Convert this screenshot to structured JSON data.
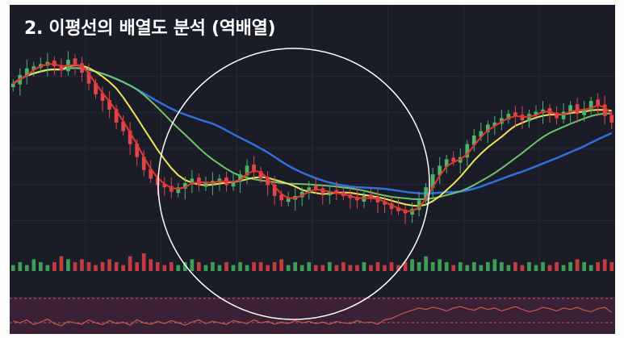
{
  "chart_data": {
    "type": "candlestick",
    "title": "2. 이평선의 배열도 분석 (역배열)",
    "xlabel": "",
    "ylabel": "",
    "ylim": [
      0,
      100
    ],
    "grid": true,
    "legend": "none",
    "colors": {
      "background": "#1a1d28",
      "up": "#4bb56a",
      "down": "#e0474c",
      "ma_short": "#e8362f",
      "ma_mid": "#f2e35b",
      "ma_long": "#6fc26a",
      "ma_longest": "#2f6fe0",
      "volume_up": "#3e9e55",
      "volume_down": "#c23b3f",
      "rsi_line": "#c65a55",
      "rsi_band": "#3a2136",
      "highlight_circle": "#ffffff"
    },
    "price": [
      80,
      84,
      87,
      88,
      89,
      90,
      88,
      86,
      91,
      89,
      85,
      80,
      75,
      72,
      68,
      62,
      58,
      52,
      46,
      40,
      36,
      33,
      32,
      30,
      32,
      34,
      36,
      33,
      34,
      35,
      36,
      33,
      35,
      38,
      42,
      39,
      36,
      33,
      28,
      26,
      27,
      28,
      30,
      32,
      31,
      29,
      30,
      29,
      28,
      27,
      26,
      28,
      27,
      25,
      24,
      22,
      21,
      20,
      22,
      26,
      32,
      38,
      42,
      45,
      44,
      46,
      52,
      56,
      58,
      61,
      62,
      64,
      66,
      65,
      63,
      66,
      67,
      68,
      66,
      64,
      67,
      70,
      66,
      68,
      72,
      70,
      65,
      62
    ],
    "volume": [
      2,
      3,
      2,
      4,
      3,
      2,
      3,
      5,
      4,
      3,
      4,
      3,
      2,
      3,
      4,
      3,
      2,
      5,
      3,
      6,
      4,
      3,
      2,
      3,
      2,
      3,
      4,
      3,
      2,
      3,
      2,
      3,
      2,
      3,
      2,
      3,
      3,
      2,
      3,
      4,
      2,
      3,
      2,
      3,
      2,
      2,
      3,
      2,
      3,
      2,
      2,
      3,
      2,
      3,
      2,
      3,
      2,
      3,
      4,
      3,
      5,
      3,
      4,
      3,
      2,
      3,
      2,
      3,
      2,
      3,
      4,
      3,
      2,
      3,
      2,
      3,
      2,
      3,
      2,
      3,
      2,
      3,
      4,
      3,
      2,
      3,
      4,
      3
    ],
    "rsi": [
      35,
      30,
      38,
      25,
      32,
      40,
      28,
      22,
      34,
      30,
      26,
      38,
      30,
      25,
      36,
      28,
      32,
      24,
      38,
      30,
      26,
      34,
      28,
      36,
      30,
      24,
      32,
      38,
      28,
      34,
      30,
      26,
      36,
      32,
      28,
      38,
      30,
      34,
      26,
      32,
      28,
      36,
      30,
      34,
      28,
      32,
      26,
      34,
      30,
      28,
      36,
      30,
      32,
      26,
      38,
      42,
      50,
      58,
      64,
      70,
      66,
      72,
      68,
      62,
      70,
      74,
      68,
      64,
      72,
      66,
      70,
      62,
      68,
      74,
      66,
      60,
      64,
      72,
      68,
      62,
      70,
      66,
      72,
      64,
      60,
      68,
      72,
      58
    ]
  }
}
